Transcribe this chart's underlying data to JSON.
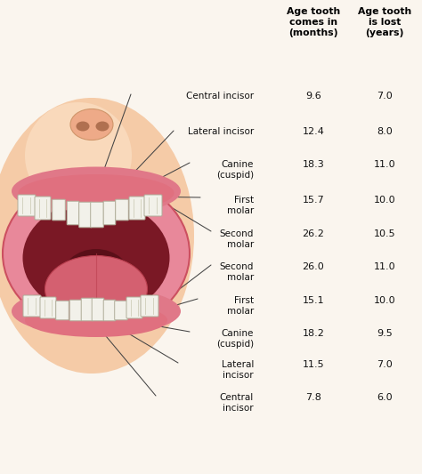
{
  "bg_color": "#faf5ee",
  "header1": "Age tooth\ncomes in\n(months)",
  "header2": "Age tooth\nis lost\n(years)",
  "rows": [
    {
      "label": "Central incisor",
      "months": "9.6",
      "years": "7.0"
    },
    {
      "label": "Lateral incisor",
      "months": "12.4",
      "years": "8.0"
    },
    {
      "label": "Canine\n(cuspid)",
      "months": "18.3",
      "years": "11.0"
    },
    {
      "label": "First\nmolar",
      "months": "15.7",
      "years": "10.0"
    },
    {
      "label": "Second\nmolar",
      "months": "26.2",
      "years": "10.5"
    },
    {
      "label": "Second\nmolar",
      "months": "26.0",
      "years": "11.0"
    },
    {
      "label": "First\nmolar",
      "months": "15.1",
      "years": "10.0"
    },
    {
      "label": "Canine\n(cuspid)",
      "months": "18.2",
      "years": "9.5"
    },
    {
      "label": "Lateral\nincisor",
      "months": "11.5",
      "years": "7.0"
    },
    {
      "label": "Central\nincisor",
      "months": "7.8",
      "years": "6.0"
    }
  ],
  "text_color": "#111111",
  "header_color": "#000000",
  "line_color": "#444444",
  "face_color": "#f5cba7",
  "face_edge": "#e8a87c",
  "lip_outer": "#e07080",
  "lip_inner": "#cc5060",
  "mouth_dark": "#7a1825",
  "tongue_color": "#d46070",
  "tongue_edge": "#bb4050",
  "tooth_face": "#f2f1ea",
  "tooth_edge": "#b0ae9a",
  "gum_color": "#e0707f",
  "nose_color": "#eeaa88",
  "nostril_color": "#b07050"
}
